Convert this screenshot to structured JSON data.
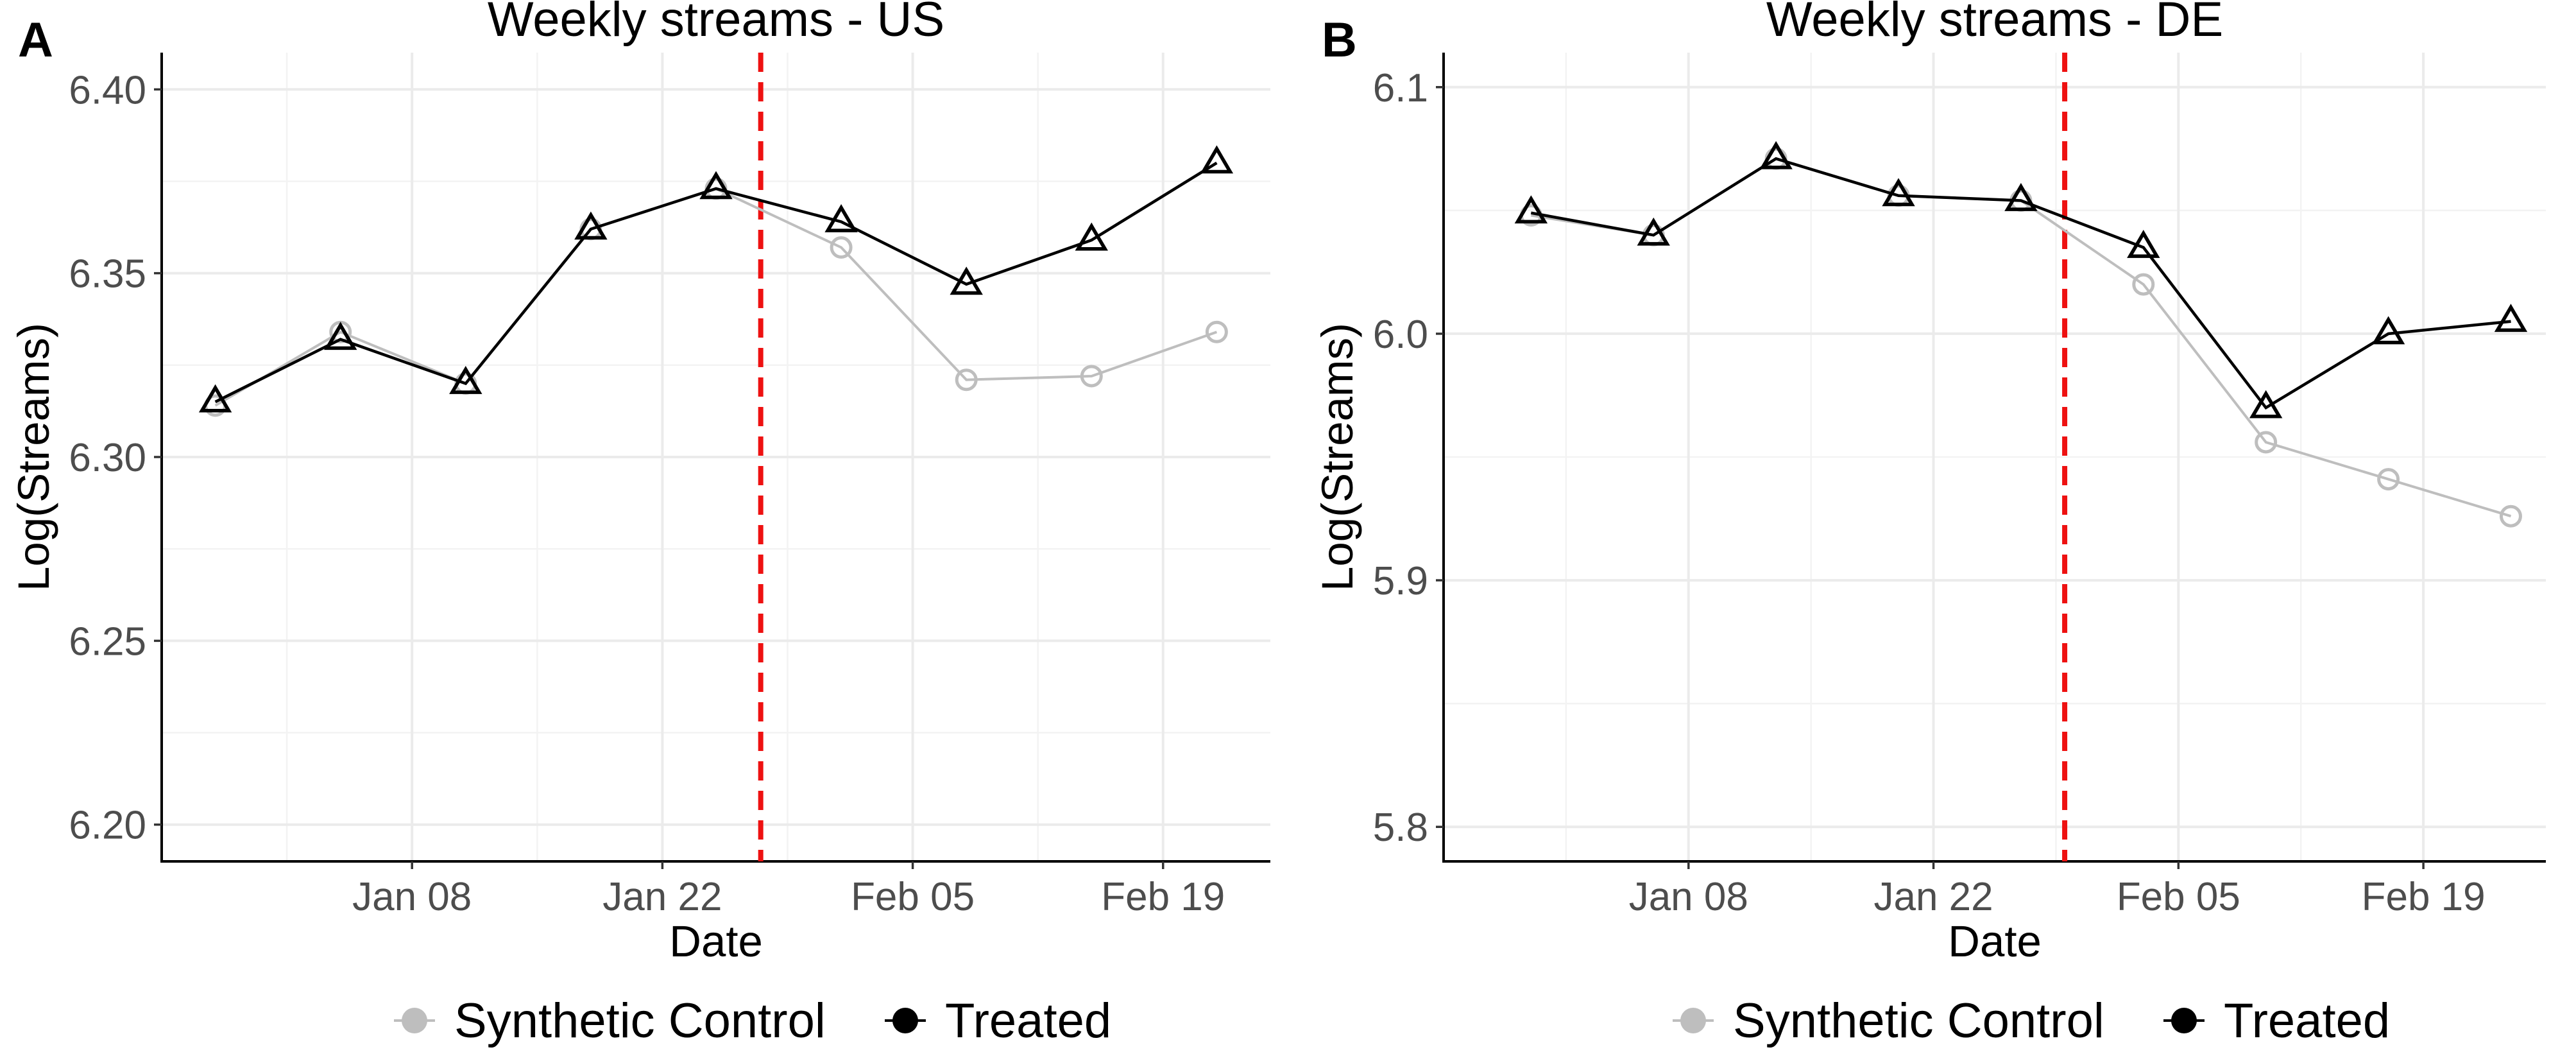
{
  "chart_data": [
    {
      "type": "line",
      "tag": "A",
      "title": "Weekly streams - US",
      "xlabel": "Date",
      "ylabel": "Log(Streams)",
      "ylim": [
        6.19,
        6.41
      ],
      "yticks": [
        6.2,
        6.25,
        6.3,
        6.35,
        6.4
      ],
      "ytick_labels": [
        "6.20",
        "6.25",
        "6.30",
        "6.35",
        "6.40"
      ],
      "xlim": [
        "Dec 28",
        "Feb 24"
      ],
      "xticks": [
        "Jan 08",
        "Jan 22",
        "Feb 05",
        "Feb 19"
      ],
      "xtick_day": [
        8,
        22,
        36,
        50
      ],
      "treatment_day": 27.5,
      "x_day": [
        -3,
        4,
        11,
        18,
        25,
        32,
        39,
        46,
        53
      ],
      "series": [
        {
          "name": "Synthetic Control",
          "marker": "circle",
          "color": "#bebebe",
          "values": [
            6.314,
            6.334,
            6.32,
            6.362,
            6.373,
            6.357,
            6.321,
            6.322,
            6.334
          ]
        },
        {
          "name": "Treated",
          "marker": "triangle",
          "color": "#000000",
          "values": [
            6.315,
            6.332,
            6.32,
            6.362,
            6.373,
            6.364,
            6.347,
            6.359,
            6.38
          ]
        }
      ]
    },
    {
      "type": "line",
      "tag": "B",
      "title": "Weekly streams - DE",
      "xlabel": "Date",
      "ylabel": "Log(Streams)",
      "ylim": [
        5.786,
        6.114
      ],
      "yticks": [
        5.8,
        5.9,
        6.0,
        6.1
      ],
      "ytick_labels": [
        "5.8",
        "5.9",
        "6.0",
        "6.1"
      ],
      "xlim": [
        "Dec 28",
        "Feb 24"
      ],
      "xticks": [
        "Jan 08",
        "Jan 22",
        "Feb 05",
        "Feb 19"
      ],
      "xtick_day": [
        8,
        22,
        36,
        50
      ],
      "treatment_day": 29.5,
      "x_day": [
        -1,
        6,
        13,
        20,
        27,
        34,
        41,
        48,
        55
      ],
      "series": [
        {
          "name": "Synthetic Control",
          "marker": "circle",
          "color": "#bebebe",
          "values": [
            6.048,
            6.04,
            6.071,
            6.056,
            6.054,
            6.02,
            5.956,
            5.941,
            5.926
          ]
        },
        {
          "name": "Treated",
          "marker": "triangle",
          "color": "#000000",
          "values": [
            6.049,
            6.04,
            6.071,
            6.056,
            6.054,
            6.035,
            5.97,
            6.0,
            6.005
          ]
        }
      ]
    }
  ],
  "legend": {
    "items": [
      {
        "label": "Synthetic Control",
        "color": "#bebebe"
      },
      {
        "label": "Treated",
        "color": "#000000"
      }
    ]
  },
  "colors": {
    "treatment_line": "#ee1111",
    "grid_major": "#ebebeb",
    "grid_minor": "#f3f3f3"
  }
}
